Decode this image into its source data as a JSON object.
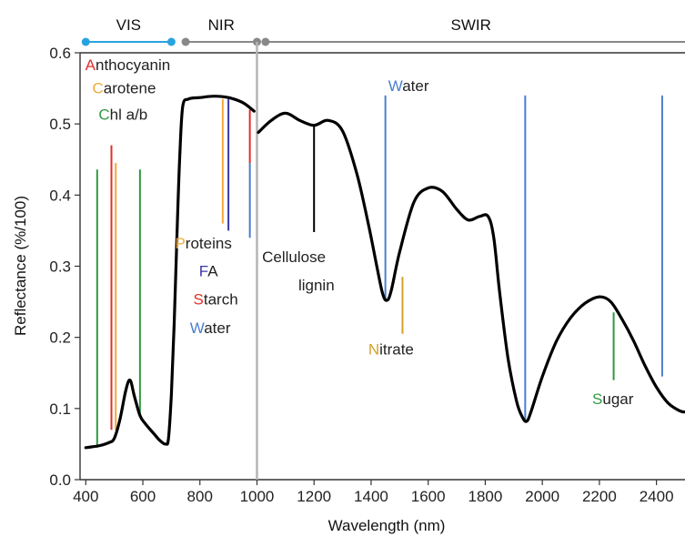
{
  "chart_data": {
    "type": "line",
    "title": "",
    "xlabel": "Wavelength (nm)",
    "ylabel": "Reflectance (%/100)",
    "xlim": [
      380,
      2500
    ],
    "ylim": [
      0,
      0.6
    ],
    "xticks": [
      400,
      600,
      800,
      1000,
      1200,
      1400,
      1600,
      1800,
      2000,
      2200,
      2400
    ],
    "yticks": [
      0.0,
      0.1,
      0.2,
      0.3,
      0.4,
      0.5,
      0.6
    ],
    "xtick_labels": [
      "400",
      "600",
      "800",
      "1000",
      "1200",
      "1400",
      "1600",
      "1800",
      "2000",
      "2200",
      "2400"
    ],
    "ytick_labels": [
      "0.0",
      "0.1",
      "0.2",
      "0.3",
      "0.4",
      "0.5",
      "0.6"
    ],
    "grid": false,
    "series": [
      {
        "color": "#000000",
        "segments": [
          {
            "x": [
              400,
              420,
              450,
              480,
              500,
              520,
              540,
              555,
              570,
              590,
              610,
              640,
              660,
              680,
              690,
              700,
              710,
              720,
              730,
              740,
              760,
              800,
              850,
              900,
              950,
              990
            ],
            "y": [
              0.045,
              0.046,
              0.048,
              0.052,
              0.058,
              0.085,
              0.125,
              0.14,
              0.118,
              0.09,
              0.078,
              0.064,
              0.055,
              0.05,
              0.058,
              0.12,
              0.22,
              0.35,
              0.46,
              0.525,
              0.535,
              0.537,
              0.539,
              0.537,
              0.53,
              0.518
            ]
          },
          {
            "x": [
              1005,
              1050,
              1100,
              1150,
              1200,
              1250,
              1300,
              1350,
              1390,
              1420,
              1440,
              1455,
              1470,
              1500,
              1550,
              1600,
              1650,
              1700,
              1740,
              1780,
              1810,
              1830,
              1850,
              1880,
              1910,
              1930,
              1945,
              1960,
              2000,
              2050,
              2100,
              2150,
              2200,
              2240,
              2280,
              2320,
              2360,
              2400,
              2440,
              2480,
              2500
            ],
            "y": [
              0.488,
              0.505,
              0.515,
              0.505,
              0.498,
              0.505,
              0.49,
              0.43,
              0.36,
              0.3,
              0.262,
              0.252,
              0.265,
              0.32,
              0.39,
              0.41,
              0.405,
              0.38,
              0.365,
              0.37,
              0.37,
              0.34,
              0.265,
              0.17,
              0.11,
              0.088,
              0.082,
              0.095,
              0.145,
              0.195,
              0.228,
              0.248,
              0.257,
              0.25,
              0.225,
              0.195,
              0.16,
              0.13,
              0.108,
              0.097,
              0.095
            ]
          }
        ]
      }
    ],
    "regions": [
      {
        "label": "VIS",
        "x_start": 400,
        "x_end": 700,
        "color": "#29a3e0",
        "label_x": 550
      },
      {
        "label": "NIR",
        "x_start": 750,
        "x_end": 1000,
        "color": "#888888",
        "label_x": 875
      },
      {
        "label": "SWIR",
        "x_start": 1030,
        "x_end": 2500,
        "color": "#888888",
        "label_x": 1750
      }
    ],
    "divider_x": 1000,
    "vertical_lines": [
      {
        "x": 440,
        "y_from": 0.045,
        "y_to": 0.436,
        "color": "#2e9a3f"
      },
      {
        "x": 490,
        "y_from": 0.07,
        "y_to": 0.47,
        "color": "#e0302a"
      },
      {
        "x": 505,
        "y_from": 0.07,
        "y_to": 0.445,
        "color": "#f2a93b"
      },
      {
        "x": 590,
        "y_from": 0.09,
        "y_to": 0.436,
        "color": "#2e9a3f"
      },
      {
        "x": 880,
        "y_from": 0.36,
        "y_to": 0.535,
        "color": "#f2a93b"
      },
      {
        "x": 900,
        "y_from": 0.35,
        "y_to": 0.535,
        "color": "#3a3aa8"
      },
      {
        "x": 975,
        "y_from": 0.445,
        "y_to": 0.52,
        "color": "#e0302a"
      },
      {
        "x": 975,
        "y_from": 0.34,
        "y_to": 0.445,
        "color": "#4a7fd0"
      },
      {
        "x": 1200,
        "y_from": 0.348,
        "y_to": 0.498,
        "color": "#000000"
      },
      {
        "x": 1450,
        "y_from": 0.254,
        "y_to": 0.54,
        "color": "#4a7fd0"
      },
      {
        "x": 1510,
        "y_from": 0.205,
        "y_to": 0.285,
        "color": "#d4a02a"
      },
      {
        "x": 1940,
        "y_from": 0.082,
        "y_to": 0.54,
        "color": "#4a7fd0"
      },
      {
        "x": 2420,
        "y_from": 0.145,
        "y_to": 0.54,
        "color": "#4a7fd0"
      },
      {
        "x": 2250,
        "y_from": 0.14,
        "y_to": 0.235,
        "color": "#2e9a3f"
      }
    ],
    "annotations": [
      {
        "first": "A",
        "rest": "nthocyanin",
        "color": "#e0302a",
        "x": 398,
        "y": 0.576
      },
      {
        "first": "C",
        "rest": "arotene",
        "color": "#f2a93b",
        "x": 423,
        "y": 0.543
      },
      {
        "first": "C",
        "rest": "hl a/b",
        "color": "#2e9a3f",
        "x": 445,
        "y": 0.506
      },
      {
        "first": "P",
        "rest": "roteins",
        "color": "#f2a93b",
        "x": 713,
        "y": 0.325
      },
      {
        "first": "F",
        "rest": "A",
        "color": "#3a3aa8",
        "x": 797,
        "y": 0.286
      },
      {
        "first": "S",
        "rest": "tarch",
        "color": "#e0302a",
        "x": 777,
        "y": 0.246
      },
      {
        "first": "W",
        "rest": "ater",
        "color": "#4a7fd0",
        "x": 765,
        "y": 0.206
      },
      {
        "first": "",
        "rest": "Cellulose",
        "color": "#000000",
        "x": 1018,
        "y": 0.306
      },
      {
        "first": "",
        "rest": "lignin",
        "color": "#000000",
        "x": 1145,
        "y": 0.266
      },
      {
        "first": "N",
        "rest": "itrate",
        "color": "#d4a02a",
        "x": 1390,
        "y": 0.176
      },
      {
        "first": "W",
        "rest": "ater",
        "color": "#4a7fd0",
        "x": 1460,
        "y": 0.546
      },
      {
        "first": "S",
        "rest": "ugar",
        "color": "#2e9a3f",
        "x": 2175,
        "y": 0.106
      }
    ]
  }
}
